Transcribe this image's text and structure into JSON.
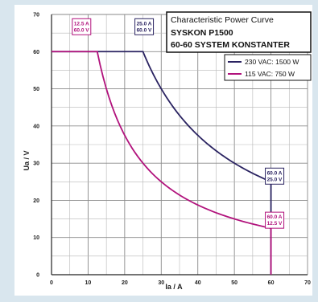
{
  "chart_data": {
    "type": "line",
    "title": "Characteristic Power Curve",
    "subtitle_lines": [
      "SYSKON P1500",
      "60-60 SYSTEM KONSTANTER"
    ],
    "xlabel": "Ia / A",
    "ylabel": "Ua / V",
    "xlim": [
      0,
      70
    ],
    "ylim": [
      0,
      70
    ],
    "xticks": [
      0,
      10,
      20,
      30,
      40,
      50,
      60,
      70
    ],
    "yticks": [
      0,
      10,
      20,
      30,
      40,
      50,
      60,
      70
    ],
    "grid_minor_step": 5,
    "grid": true,
    "legend_position": "top-right",
    "series": [
      {
        "name": "230 VAC: 1500 W",
        "color": "#2a2361",
        "power_w": 1500,
        "i_max_a": 60,
        "u_max_v": 60,
        "x": [
          0,
          25,
          27.5,
          30,
          35,
          40,
          45,
          50,
          55,
          60,
          60
        ],
        "y": [
          60,
          60,
          54.5,
          50,
          42.9,
          37.5,
          33.3,
          30,
          27.3,
          25,
          0
        ]
      },
      {
        "name": "115 VAC:  750 W",
        "color": "#b1127c",
        "power_w": 750,
        "i_max_a": 60,
        "u_max_v": 60,
        "x": [
          0,
          12.5,
          15,
          17.5,
          20,
          25,
          30,
          35,
          40,
          45,
          50,
          55,
          60,
          60
        ],
        "y": [
          60,
          60,
          50,
          42.9,
          37.5,
          30,
          25,
          21.4,
          18.75,
          16.7,
          15,
          13.6,
          12.5,
          0
        ]
      }
    ],
    "point_labels": [
      {
        "lines": [
          "12.5 A",
          "60.0 V"
        ],
        "color": "#b1127c",
        "x": 12.5,
        "y": 60
      },
      {
        "lines": [
          "25.0 A",
          "60.0 V"
        ],
        "color": "#2a2361",
        "x": 25,
        "y": 60
      },
      {
        "lines": [
          "60.0 A",
          "25.0 V"
        ],
        "color": "#2a2361",
        "x": 60,
        "y": 25
      },
      {
        "lines": [
          "60.0 A",
          "12.5 V"
        ],
        "color": "#b1127c",
        "x": 60,
        "y": 12.5
      }
    ]
  }
}
